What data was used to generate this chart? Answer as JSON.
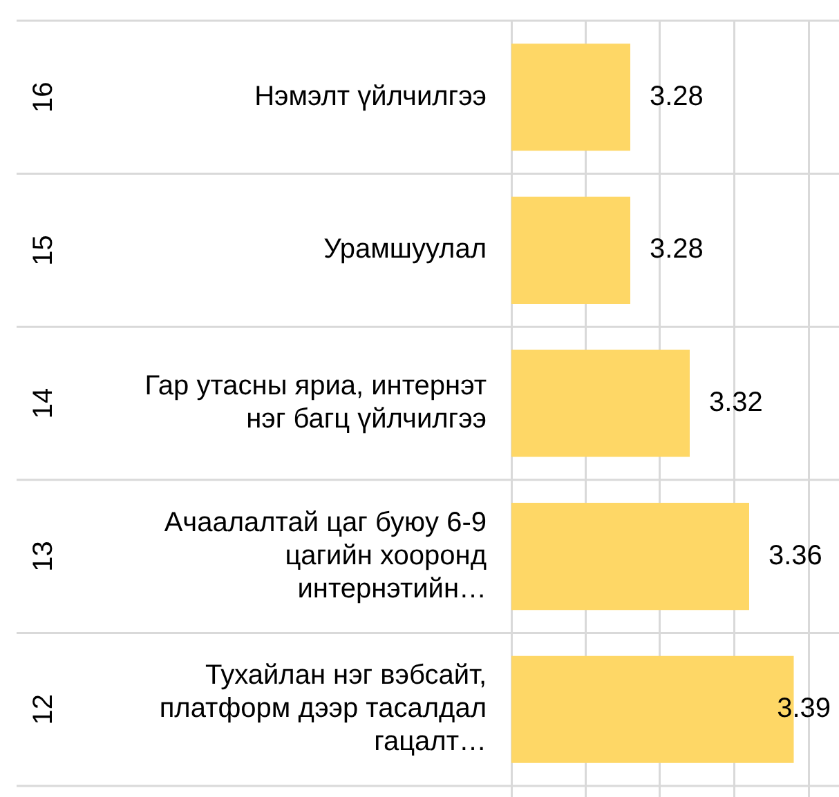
{
  "chart_data": {
    "type": "bar",
    "orientation": "horizontal",
    "categories": [
      "Нэмэлт үйлчилгээ",
      "Урамшуулал",
      "Гар утасны яриа, интернэт нэг багц үйлчилгээ",
      "Ачаалалтай цаг буюу 6-9 цагийн хооронд интернэтийн…",
      "Тухайлан нэг вэбсайт, платформ дээр тасалдал гацалт…"
    ],
    "values": [
      3.28,
      3.28,
      3.32,
      3.36,
      3.39
    ],
    "color": "#fed766",
    "xlim": [
      3.2,
      3.4
    ],
    "xticks": [
      {
        "value": 3.2,
        "label": null
      },
      {
        "value": 3.25,
        "label": null
      },
      {
        "value": 3.3,
        "label": null
      },
      {
        "value": 3.35,
        "label": null
      },
      {
        "value": 3.4,
        "label": null
      }
    ],
    "grid": "x",
    "tick_labels": "y",
    "data_labels": true,
    "legend": false,
    "annotations": [
      "16",
      "15",
      "14",
      "13",
      "12"
    ]
  }
}
